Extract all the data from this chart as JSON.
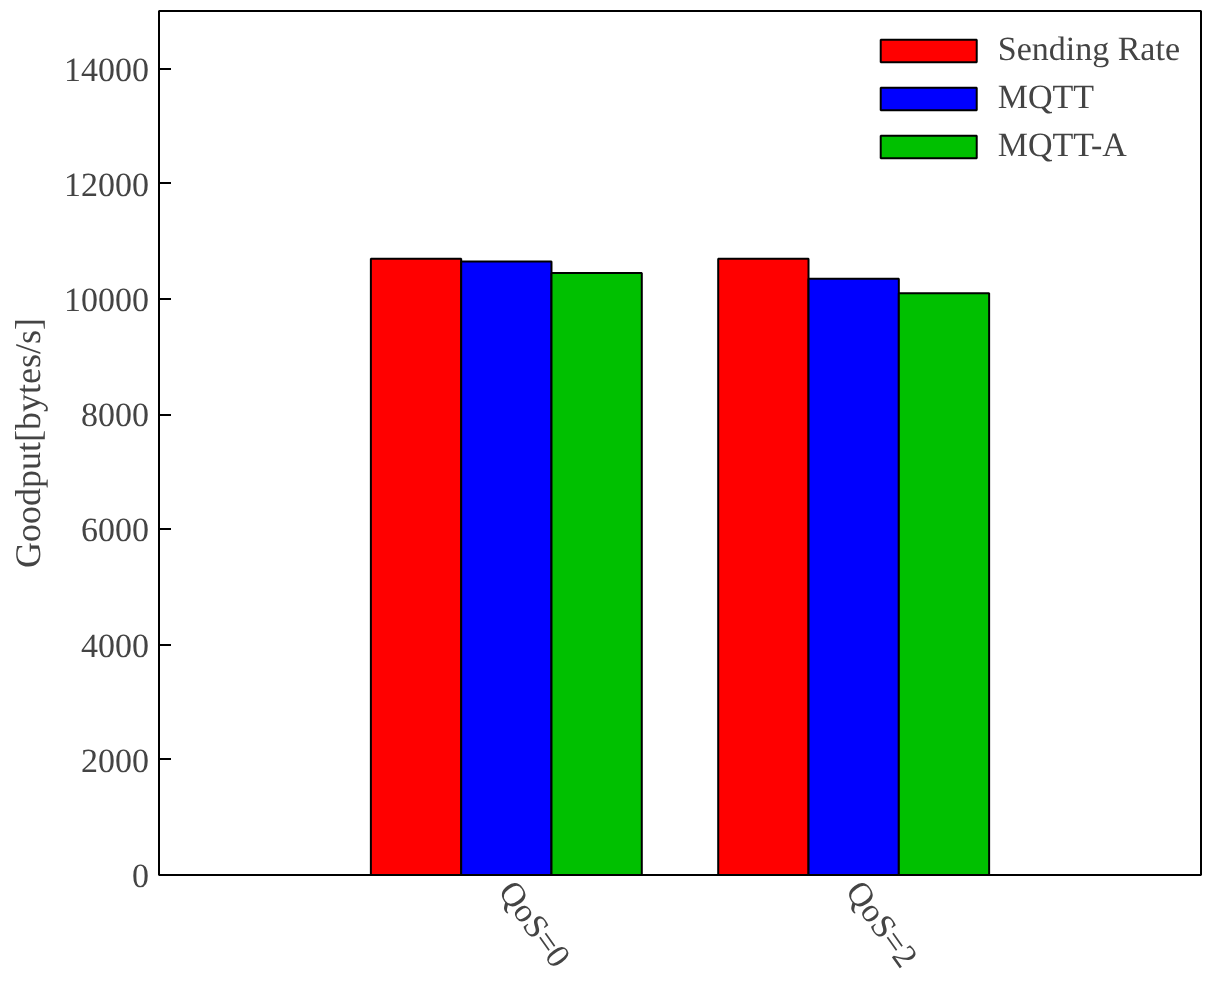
{
  "chart_data": {
    "type": "bar",
    "ylabel": "Goodput[bytes/s]",
    "categories": [
      "QoS=0",
      "QoS=2"
    ],
    "series": [
      {
        "name": "Sending Rate",
        "color": "#ff0000",
        "values": [
          10700,
          10700
        ]
      },
      {
        "name": "MQTT",
        "color": "#0000ff",
        "values": [
          10650,
          10350
        ]
      },
      {
        "name": "MQTT-A",
        "color": "#00c000",
        "values": [
          10450,
          10100
        ]
      }
    ],
    "ylim": [
      0,
      15000
    ],
    "yticks": [
      0,
      2000,
      4000,
      6000,
      8000,
      10000,
      12000,
      14000
    ],
    "grid": false,
    "legend": "top right"
  }
}
